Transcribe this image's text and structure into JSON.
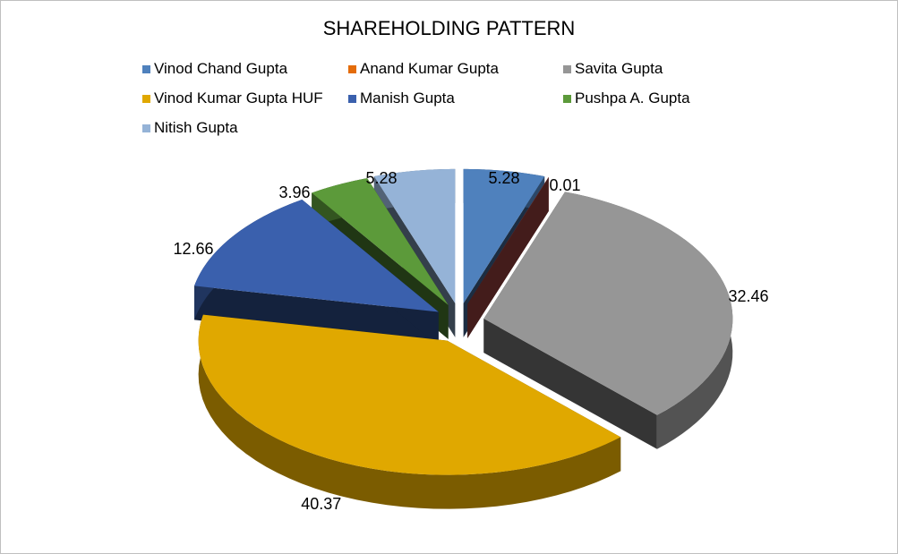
{
  "chart_data": {
    "type": "pie",
    "title": "SHAREHOLDING PATTERN",
    "legend_position": "top",
    "categories": [
      "Vinod Chand Gupta",
      "Anand Kumar Gupta",
      "Savita Gupta",
      "Vinod Kumar Gupta HUF",
      "Manish Gupta",
      "Pushpa A. Gupta",
      "Nitish Gupta"
    ],
    "values": [
      5.28,
      0.01,
      32.46,
      40.37,
      12.66,
      3.96,
      5.28
    ],
    "labels": [
      "5.28",
      "0.01",
      "32.46",
      "40.37",
      "12.66",
      "3.96",
      "5.28"
    ],
    "colors": [
      "#4f81bd",
      "#c0504d",
      "#969696",
      "#e0a800",
      "#3a60ad",
      "#5c9a3a",
      "#95b3d7"
    ],
    "legend_colors": [
      "#4f81bd",
      "#e46c0a",
      "#969696",
      "#e0a800",
      "#3a60ad",
      "#5c9a3a",
      "#95b3d7"
    ]
  }
}
